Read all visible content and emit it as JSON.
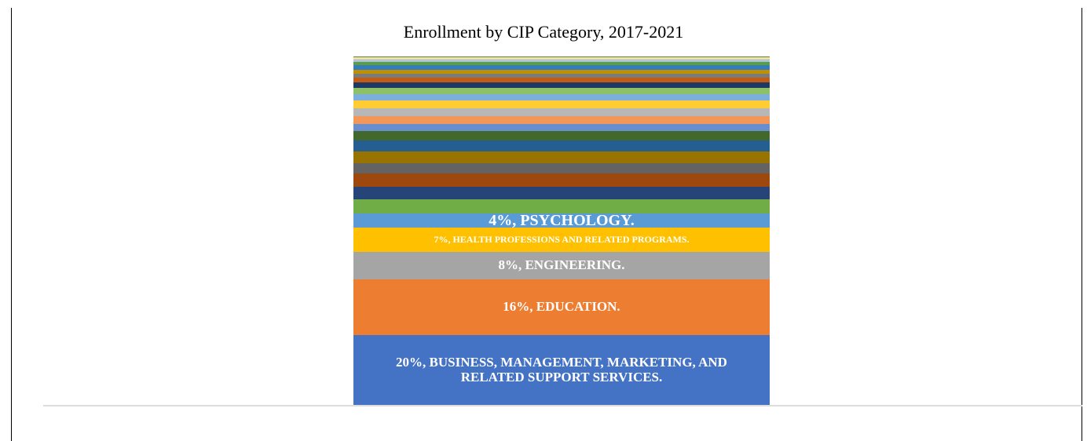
{
  "chart_data": {
    "type": "stacked_bar",
    "title": "Enrollment by CIP Category, 2017-2021",
    "ylim": [
      0,
      100
    ],
    "series": [
      {
        "color": "#4472c4",
        "values": [
          20
        ],
        "value_labels": [
          "20%, BUSINESS, MANAGEMENT, MARKETING, AND RELATED SUPPORT SERVICES."
        ]
      },
      {
        "color": "#ed7d31",
        "values": [
          16
        ],
        "value_labels": [
          "16%, EDUCATION."
        ]
      },
      {
        "color": "#a5a5a5",
        "values": [
          8
        ],
        "value_labels": [
          "8%, ENGINEERING."
        ]
      },
      {
        "color": "#ffc000",
        "values": [
          7
        ],
        "value_labels": [
          "7%, HEALTH PROFESSIONS AND RELATED PROGRAMS."
        ]
      },
      {
        "color": "#5b9bd5",
        "values": [
          4
        ],
        "value_labels": [
          "4%, PSYCHOLOGY."
        ]
      },
      {
        "color": "#70ad47",
        "values": [
          4
        ]
      },
      {
        "color": "#264478",
        "values": [
          3.6
        ]
      },
      {
        "color": "#9e480e",
        "values": [
          3.8
        ]
      },
      {
        "color": "#636363",
        "values": [
          3
        ]
      },
      {
        "color": "#997300",
        "values": [
          3.4
        ]
      },
      {
        "color": "#255e91",
        "values": [
          3
        ]
      },
      {
        "color": "#43682b",
        "values": [
          2.7
        ]
      },
      {
        "color": "#698ed0",
        "values": [
          2.2
        ]
      },
      {
        "color": "#f1975a",
        "values": [
          2.2
        ]
      },
      {
        "color": "#b7b7b7",
        "values": [
          2.2
        ]
      },
      {
        "color": "#ffcd33",
        "values": [
          2.2
        ]
      },
      {
        "color": "#7cafdd",
        "values": [
          1.8
        ]
      },
      {
        "color": "#8cc168",
        "values": [
          1.8
        ]
      },
      {
        "color": "#203864",
        "values": [
          1.6
        ]
      },
      {
        "color": "#c55a11",
        "values": [
          1.4
        ]
      },
      {
        "color": "#7b7b7b",
        "values": [
          1.1
        ]
      },
      {
        "color": "#bf9000",
        "values": [
          1.1
        ]
      },
      {
        "color": "#327dc2",
        "values": [
          1.4
        ]
      },
      {
        "color": "#5e9e3a",
        "values": [
          0.9
        ]
      },
      {
        "color": "#9dc3e6",
        "values": [
          0.5
        ]
      },
      {
        "color": "#c9c9c9",
        "values": [
          0.4
        ]
      },
      {
        "color": "#ffe699",
        "values": [
          0.4
        ]
      },
      {
        "color": "#548235",
        "values": [
          0.3
        ]
      }
    ]
  }
}
